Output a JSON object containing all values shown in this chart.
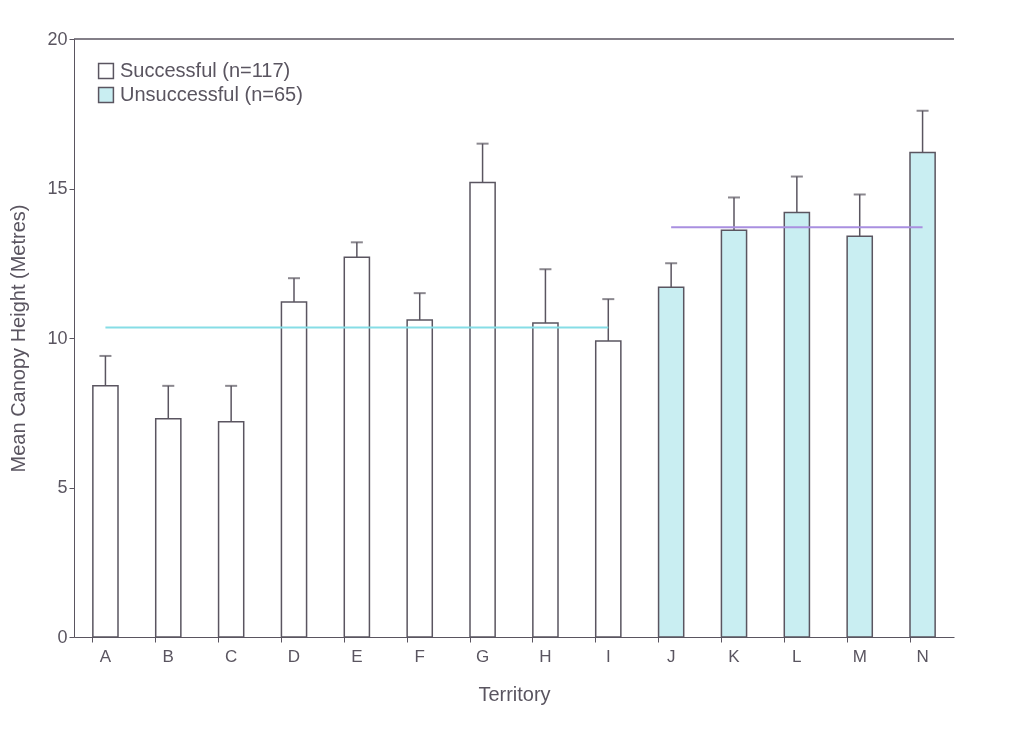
{
  "chart_data": {
    "type": "bar",
    "xlabel": "Territory",
    "ylabel": "Mean Canopy Height  (Metres)",
    "categories": [
      "A",
      "B",
      "C",
      "D",
      "E",
      "F",
      "G",
      "H",
      "I",
      "J",
      "K",
      "L",
      "M",
      "N"
    ],
    "series": [
      {
        "name": "Successful  (n=117)",
        "color": "#ffffff",
        "values": [
          8.4,
          7.3,
          7.2,
          11.2,
          12.7,
          10.6,
          15.2,
          10.5,
          9.9,
          null,
          null,
          null,
          null,
          null
        ],
        "errors": [
          1.0,
          1.1,
          1.2,
          0.8,
          0.5,
          0.9,
          1.3,
          1.8,
          1.4,
          null,
          null,
          null,
          null,
          null
        ]
      },
      {
        "name": "Unsuccessful  (n=65)",
        "color": "#c9eef2",
        "values": [
          null,
          null,
          null,
          null,
          null,
          null,
          null,
          null,
          null,
          11.7,
          13.6,
          14.2,
          13.4,
          16.2
        ],
        "errors": [
          null,
          null,
          null,
          null,
          null,
          null,
          null,
          null,
          null,
          0.8,
          1.1,
          1.2,
          1.4,
          1.4
        ]
      },
      {
        "type": "line",
        "color": "#86dde6",
        "x": [
          "A",
          "I"
        ],
        "values": [
          10.35,
          10.35
        ]
      },
      {
        "type": "line",
        "color": "#a98fe0",
        "x": [
          "J",
          "N"
        ],
        "values": [
          13.7,
          13.7
        ]
      }
    ],
    "ylim": [
      0,
      20
    ],
    "yticks": [
      0,
      5,
      10,
      15,
      20
    ],
    "grid": false,
    "legend": "top left"
  }
}
